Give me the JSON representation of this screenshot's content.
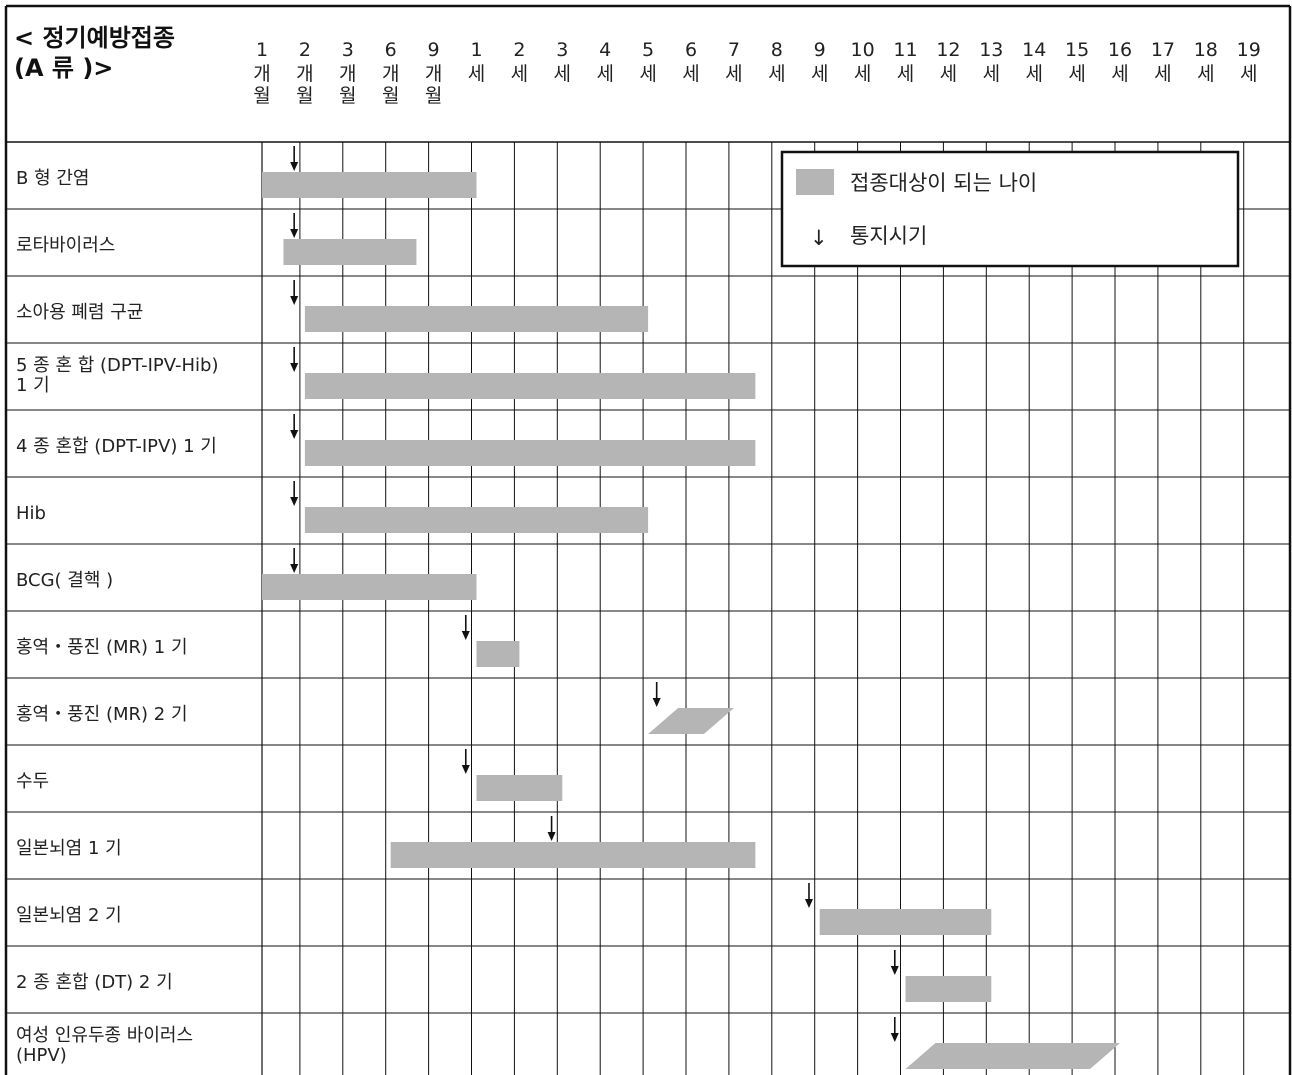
{
  "title_lines": [
    "< 정기예방접종",
    "(A 류 )>"
  ],
  "legend": {
    "target_label": "접종대상이 되는 나이",
    "notice_label": "통지시기",
    "notice_symbol": "↓",
    "bar_color": "#b5b5b5"
  },
  "chart_data": {
    "type": "gantt",
    "title": "< 정기예방접종 (A 류 )>",
    "columns": [
      {
        "num": "1",
        "unit": [
          "개",
          "월"
        ]
      },
      {
        "num": "2",
        "unit": [
          "개",
          "월"
        ]
      },
      {
        "num": "3",
        "unit": [
          "개",
          "월"
        ]
      },
      {
        "num": "6",
        "unit": [
          "개",
          "월"
        ]
      },
      {
        "num": "9",
        "unit": [
          "개",
          "월"
        ]
      },
      {
        "num": "1",
        "unit": [
          "세"
        ]
      },
      {
        "num": "2",
        "unit": [
          "세"
        ]
      },
      {
        "num": "3",
        "unit": [
          "세"
        ]
      },
      {
        "num": "4",
        "unit": [
          "세"
        ]
      },
      {
        "num": "5",
        "unit": [
          "세"
        ]
      },
      {
        "num": "6",
        "unit": [
          "세"
        ]
      },
      {
        "num": "7",
        "unit": [
          "세"
        ]
      },
      {
        "num": "8",
        "unit": [
          "세"
        ]
      },
      {
        "num": "9",
        "unit": [
          "세"
        ]
      },
      {
        "num": "10",
        "unit": [
          "세"
        ]
      },
      {
        "num": "11",
        "unit": [
          "세"
        ]
      },
      {
        "num": "12",
        "unit": [
          "세"
        ]
      },
      {
        "num": "13",
        "unit": [
          "세"
        ]
      },
      {
        "num": "14",
        "unit": [
          "세"
        ]
      },
      {
        "num": "15",
        "unit": [
          "세"
        ]
      },
      {
        "num": "16",
        "unit": [
          "세"
        ]
      },
      {
        "num": "17",
        "unit": [
          "세"
        ]
      },
      {
        "num": "18",
        "unit": [
          "세"
        ]
      },
      {
        "num": "19",
        "unit": [
          "세"
        ]
      }
    ],
    "rows": [
      {
        "label": [
          "B 형 간염"
        ],
        "bar": [
          0,
          5
        ],
        "notice": 0.75
      },
      {
        "label": [
          "로타바이러스"
        ],
        "bar": [
          0.5,
          3.6
        ],
        "notice": 0.75
      },
      {
        "label": [
          "소아용 폐렴 구균"
        ],
        "bar": [
          1,
          9
        ],
        "notice": 0.75
      },
      {
        "label": [
          "5 종  혼 합 (DPT-IPV-Hib)",
          "1 기"
        ],
        "bar": [
          1,
          11.5
        ],
        "notice": 0.75
      },
      {
        "label": [
          "4 종 혼합 (DPT-IPV) 1 기"
        ],
        "bar": [
          1,
          11.5
        ],
        "notice": 0.75
      },
      {
        "label": [
          "Hib"
        ],
        "bar": [
          1,
          9
        ],
        "notice": 0.75
      },
      {
        "label": [
          "BCG( 결핵 )"
        ],
        "bar": [
          0,
          5
        ],
        "notice": 0.75
      },
      {
        "label": [
          "홍역・풍진 (MR) 1 기"
        ],
        "bar": [
          5,
          6
        ],
        "notice": 4.75
      },
      {
        "label": [
          "홍역・풍진 (MR) 2 기"
        ],
        "bar": [
          9,
          11
        ],
        "slant": true,
        "notice": 9.2
      },
      {
        "label": [
          "수두"
        ],
        "bar": [
          5,
          7
        ],
        "notice": 4.75
      },
      {
        "label": [
          "일본뇌염 1 기"
        ],
        "bar": [
          3,
          11.5
        ],
        "notice": 6.75
      },
      {
        "label": [
          "일본뇌염 2 기"
        ],
        "bar": [
          13,
          17
        ],
        "notice": 12.75
      },
      {
        "label": [
          "2 종 혼합 (DT) 2 기"
        ],
        "bar": [
          15,
          17
        ],
        "notice": 14.75
      },
      {
        "label": [
          "여성 인유두종 바이러스",
          "(HPV)"
        ],
        "bar": [
          15,
          20
        ],
        "slant": true,
        "notice": 14.75
      }
    ]
  }
}
